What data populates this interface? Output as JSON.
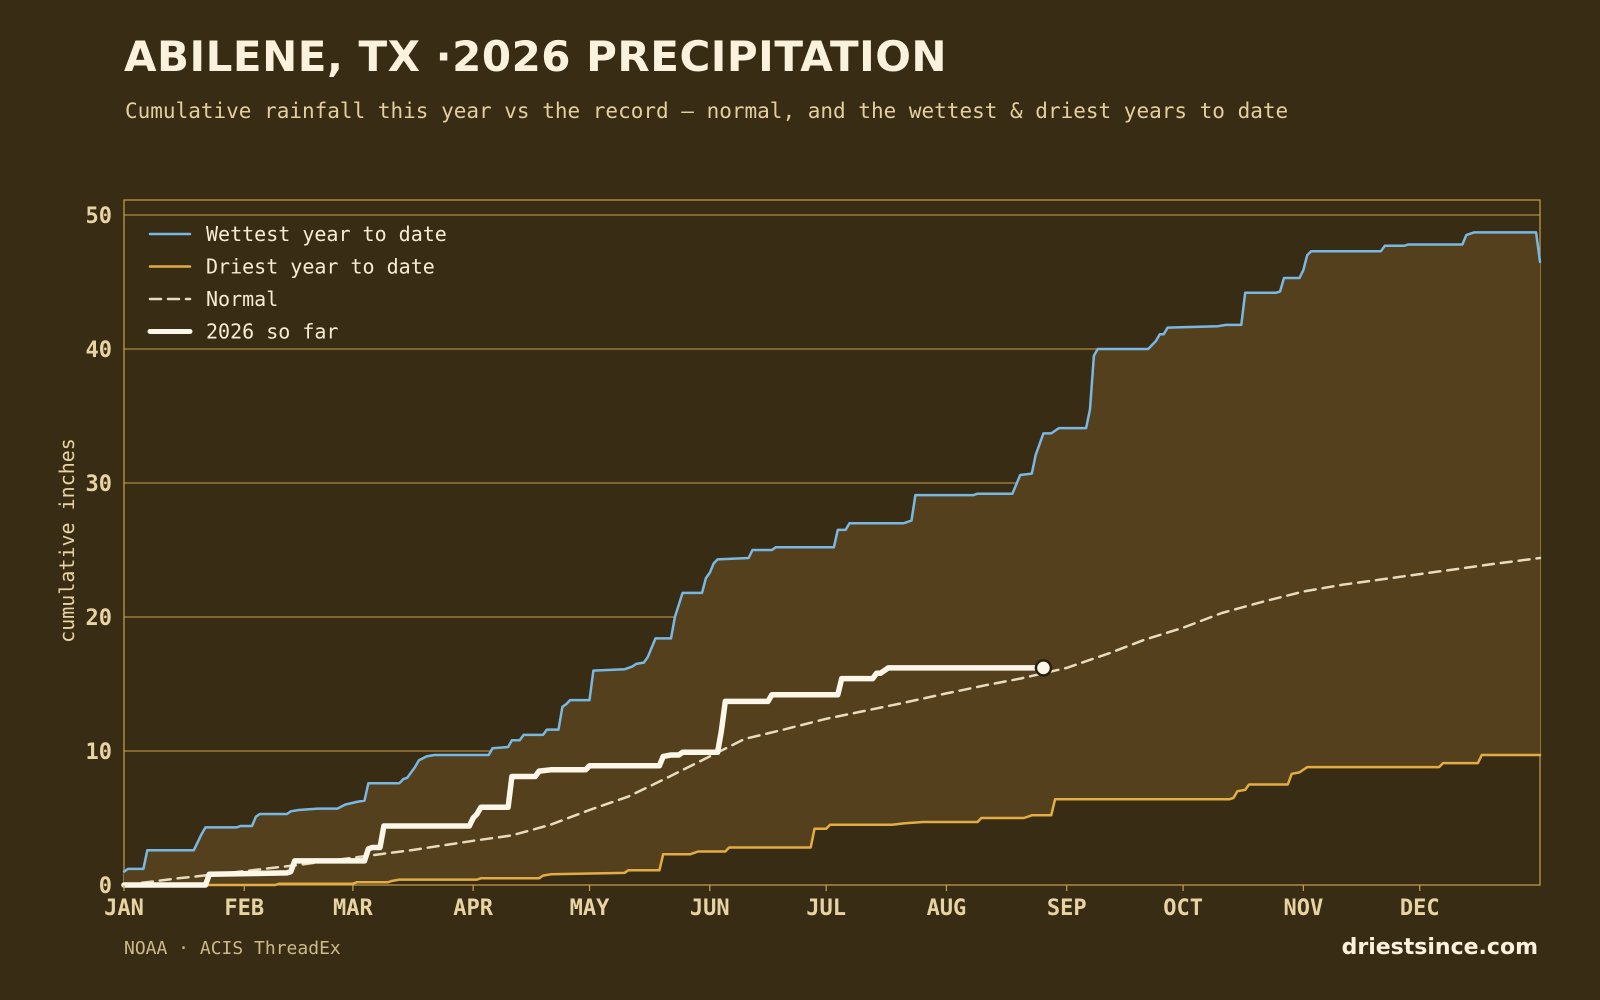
{
  "header": {
    "title": "ABILENE, TX ·2026 PRECIPITATION",
    "subtitle": "Cumulative rainfall this year vs the record — normal, and the wettest & driest years to date"
  },
  "footer": {
    "source": "NOAA · ACIS ThreadEx",
    "brand": "driestsince.com"
  },
  "colors": {
    "background": "#392c14",
    "band_fill": "#54401d",
    "grid": "#c8a24a",
    "wettest": "#79b8e3",
    "driest": "#e3ad45",
    "normal": "#e8dcbf",
    "current": "#fdf7e9",
    "tick_text": "#e8d3a3"
  },
  "chart_data": {
    "type": "line",
    "ylabel": "cumulative inches",
    "xlabel": "",
    "ylim": [
      0,
      50
    ],
    "yticks": [
      0,
      10,
      20,
      30,
      40,
      50
    ],
    "xlim": [
      1,
      366
    ],
    "xticks": [
      {
        "label": "JAN",
        "day": 1
      },
      {
        "label": "FEB",
        "day": 32
      },
      {
        "label": "MAR",
        "day": 60
      },
      {
        "label": "APR",
        "day": 91
      },
      {
        "label": "MAY",
        "day": 121
      },
      {
        "label": "JUN",
        "day": 152
      },
      {
        "label": "JUL",
        "day": 182
      },
      {
        "label": "AUG",
        "day": 213
      },
      {
        "label": "SEP",
        "day": 244
      },
      {
        "label": "OCT",
        "day": 274
      },
      {
        "label": "NOV",
        "day": 305
      },
      {
        "label": "DEC",
        "day": 335
      }
    ],
    "legend_position": "top-left",
    "grid": true,
    "series": [
      {
        "name": "Wettest year to date",
        "key": "wettest",
        "style": "solid",
        "points": [
          [
            1,
            1.0
          ],
          [
            2,
            1.2
          ],
          [
            6,
            1.2
          ],
          [
            7,
            2.6
          ],
          [
            19,
            2.6
          ],
          [
            21,
            3.8
          ],
          [
            22,
            4.3
          ],
          [
            30,
            4.3
          ],
          [
            31,
            4.4
          ],
          [
            34,
            4.4
          ],
          [
            35,
            5.1
          ],
          [
            36,
            5.3
          ],
          [
            43,
            5.3
          ],
          [
            44,
            5.5
          ],
          [
            46,
            5.6
          ],
          [
            51,
            5.7
          ],
          [
            56,
            5.7
          ],
          [
            58,
            6.0
          ],
          [
            61,
            6.2
          ],
          [
            63,
            6.3
          ],
          [
            64,
            7.6
          ],
          [
            72,
            7.6
          ],
          [
            73,
            7.9
          ],
          [
            74,
            8.0
          ],
          [
            75,
            8.4
          ],
          [
            76,
            8.8
          ],
          [
            77,
            9.3
          ],
          [
            79,
            9.6
          ],
          [
            81,
            9.7
          ],
          [
            95,
            9.7
          ],
          [
            96,
            10.2
          ],
          [
            100,
            10.3
          ],
          [
            101,
            10.8
          ],
          [
            103,
            10.8
          ],
          [
            104,
            11.2
          ],
          [
            109,
            11.2
          ],
          [
            110,
            11.6
          ],
          [
            113,
            11.6
          ],
          [
            114,
            13.3
          ],
          [
            115,
            13.5
          ],
          [
            116,
            13.8
          ],
          [
            121,
            13.8
          ],
          [
            122,
            16.0
          ],
          [
            130,
            16.1
          ],
          [
            132,
            16.3
          ],
          [
            133,
            16.5
          ],
          [
            135,
            16.6
          ],
          [
            136,
            17.0
          ],
          [
            138,
            18.4
          ],
          [
            142,
            18.4
          ],
          [
            143,
            20.0
          ],
          [
            145,
            21.8
          ],
          [
            150,
            21.8
          ],
          [
            151,
            22.9
          ],
          [
            152,
            23.3
          ],
          [
            153,
            24.0
          ],
          [
            154,
            24.3
          ],
          [
            162,
            24.4
          ],
          [
            163,
            25.0
          ],
          [
            168,
            25.0
          ],
          [
            169,
            25.2
          ],
          [
            184,
            25.2
          ],
          [
            185,
            26.5
          ],
          [
            187,
            26.5
          ],
          [
            188,
            27.0
          ],
          [
            202,
            27.0
          ],
          [
            204,
            27.2
          ],
          [
            205,
            29.1
          ],
          [
            220,
            29.1
          ],
          [
            221,
            29.2
          ],
          [
            230,
            29.2
          ],
          [
            232,
            30.6
          ],
          [
            235,
            30.7
          ],
          [
            236,
            32.1
          ],
          [
            238,
            33.7
          ],
          [
            240,
            33.7
          ],
          [
            242,
            34.1
          ],
          [
            249,
            34.1
          ],
          [
            250,
            35.5
          ],
          [
            251,
            39.5
          ],
          [
            252,
            40.0
          ],
          [
            265,
            40.0
          ],
          [
            267,
            40.6
          ],
          [
            268,
            41.1
          ],
          [
            269,
            41.1
          ],
          [
            270,
            41.6
          ],
          [
            283,
            41.7
          ],
          [
            285,
            41.8
          ],
          [
            289,
            41.8
          ],
          [
            290,
            44.2
          ],
          [
            298,
            44.2
          ],
          [
            299,
            44.3
          ],
          [
            300,
            45.3
          ],
          [
            304,
            45.3
          ],
          [
            305,
            45.9
          ],
          [
            306,
            47.0
          ],
          [
            307,
            47.3
          ],
          [
            325,
            47.3
          ],
          [
            326,
            47.7
          ],
          [
            331,
            47.7
          ],
          [
            332,
            47.8
          ],
          [
            346,
            47.8
          ],
          [
            347,
            48.5
          ],
          [
            349,
            48.7
          ],
          [
            365,
            48.7
          ],
          [
            366,
            46.5
          ]
        ]
      },
      {
        "name": "Driest year to date",
        "key": "driest",
        "style": "solid",
        "points": [
          [
            1,
            0
          ],
          [
            40,
            0
          ],
          [
            41,
            0.1
          ],
          [
            60,
            0.1
          ],
          [
            61,
            0.2
          ],
          [
            69,
            0.2
          ],
          [
            70,
            0.3
          ],
          [
            72,
            0.4
          ],
          [
            92,
            0.4
          ],
          [
            93,
            0.5
          ],
          [
            108,
            0.5
          ],
          [
            109,
            0.7
          ],
          [
            111,
            0.8
          ],
          [
            130,
            0.9
          ],
          [
            131,
            1.1
          ],
          [
            139,
            1.1
          ],
          [
            140,
            2.3
          ],
          [
            147,
            2.3
          ],
          [
            149,
            2.5
          ],
          [
            156,
            2.5
          ],
          [
            157,
            2.8
          ],
          [
            178,
            2.8
          ],
          [
            179,
            4.2
          ],
          [
            182,
            4.2
          ],
          [
            183,
            4.5
          ],
          [
            199,
            4.5
          ],
          [
            202,
            4.6
          ],
          [
            207,
            4.7
          ],
          [
            221,
            4.7
          ],
          [
            222,
            5.0
          ],
          [
            233,
            5.0
          ],
          [
            235,
            5.2
          ],
          [
            240,
            5.2
          ],
          [
            241,
            6.4
          ],
          [
            286,
            6.4
          ],
          [
            287,
            6.5
          ],
          [
            288,
            7.0
          ],
          [
            290,
            7.1
          ],
          [
            291,
            7.5
          ],
          [
            301,
            7.5
          ],
          [
            302,
            8.3
          ],
          [
            304,
            8.4
          ],
          [
            306,
            8.8
          ],
          [
            340,
            8.8
          ],
          [
            341,
            9.1
          ],
          [
            350,
            9.1
          ],
          [
            351,
            9.7
          ],
          [
            366,
            9.7
          ]
        ]
      },
      {
        "name": "Normal",
        "key": "normal",
        "style": "dashed",
        "points": [
          [
            1,
            0
          ],
          [
            15,
            0.5
          ],
          [
            31,
            1.0
          ],
          [
            46,
            1.5
          ],
          [
            59,
            2.0
          ],
          [
            75,
            2.6
          ],
          [
            91,
            3.3
          ],
          [
            101,
            3.7
          ],
          [
            111,
            4.5
          ],
          [
            121,
            5.6
          ],
          [
            131,
            6.6
          ],
          [
            141,
            8.0
          ],
          [
            152,
            9.6
          ],
          [
            161,
            10.9
          ],
          [
            171,
            11.6
          ],
          [
            182,
            12.4
          ],
          [
            192,
            13.0
          ],
          [
            202,
            13.6
          ],
          [
            213,
            14.3
          ],
          [
            223,
            14.9
          ],
          [
            232,
            15.4
          ],
          [
            244,
            16.2
          ],
          [
            255,
            17.3
          ],
          [
            264,
            18.3
          ],
          [
            274,
            19.2
          ],
          [
            284,
            20.3
          ],
          [
            294,
            21.1
          ],
          [
            305,
            21.9
          ],
          [
            315,
            22.4
          ],
          [
            325,
            22.8
          ],
          [
            335,
            23.2
          ],
          [
            345,
            23.6
          ],
          [
            355,
            24.0
          ],
          [
            366,
            24.4
          ]
        ]
      },
      {
        "name": "2026 so far",
        "key": "current",
        "style": "bold",
        "points": [
          [
            1,
            0
          ],
          [
            22,
            0
          ],
          [
            23,
            0.8
          ],
          [
            43,
            0.9
          ],
          [
            44,
            1.0
          ],
          [
            45,
            1.8
          ],
          [
            63,
            1.8
          ],
          [
            64,
            2.7
          ],
          [
            65,
            2.8
          ],
          [
            67,
            2.8
          ],
          [
            68,
            4.4
          ],
          [
            90,
            4.4
          ],
          [
            91,
            5.0
          ],
          [
            92,
            5.3
          ],
          [
            93,
            5.8
          ],
          [
            100,
            5.8
          ],
          [
            101,
            8.1
          ],
          [
            107,
            8.1
          ],
          [
            108,
            8.5
          ],
          [
            111,
            8.6
          ],
          [
            120,
            8.6
          ],
          [
            121,
            8.9
          ],
          [
            139,
            8.9
          ],
          [
            140,
            9.6
          ],
          [
            142,
            9.7
          ],
          [
            144,
            9.7
          ],
          [
            145,
            9.9
          ],
          [
            154,
            9.9
          ],
          [
            155,
            11.5
          ],
          [
            156,
            13.7
          ],
          [
            167,
            13.7
          ],
          [
            168,
            14.2
          ],
          [
            185,
            14.2
          ],
          [
            186,
            15.4
          ],
          [
            194,
            15.4
          ],
          [
            195,
            15.8
          ],
          [
            196,
            15.8
          ],
          [
            198,
            16.2
          ],
          [
            238,
            16.2
          ]
        ]
      }
    ]
  }
}
